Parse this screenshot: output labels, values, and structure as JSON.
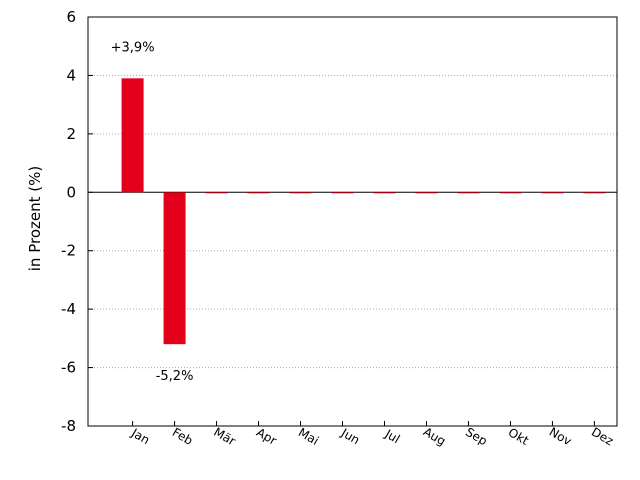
{
  "chart_data": {
    "type": "bar",
    "categories": [
      "Jan",
      "Feb",
      "Mär",
      "Apr",
      "Mai",
      "Jun",
      "Jul",
      "Aug",
      "Sep",
      "Okt",
      "Nov",
      "Dez"
    ],
    "values": [
      3.9,
      -5.2,
      0,
      0,
      0,
      0,
      0,
      0,
      0,
      0,
      0,
      0
    ],
    "data_labels": [
      "+3,9%",
      "-5,2%",
      "",
      "",
      "",
      "",
      "",
      "",
      "",
      "",
      "",
      ""
    ],
    "title": "",
    "xlabel": "",
    "ylabel": "in Prozent (%)",
    "ylim": [
      -8,
      6
    ],
    "yticks": [
      6,
      4,
      2,
      0,
      -2,
      -4,
      -6,
      -8
    ],
    "grid": "horizontal dotted",
    "bar_color": "#e2001a"
  }
}
